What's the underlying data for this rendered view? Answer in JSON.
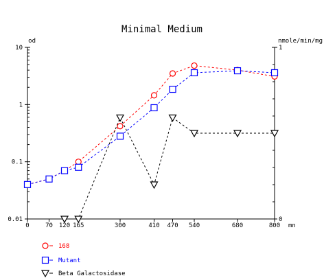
{
  "chart_data": {
    "type": "line",
    "title": "Minimal Medium",
    "x_unit": "mn",
    "x_ticks": [
      0,
      70,
      120,
      165,
      300,
      410,
      470,
      540,
      680,
      800
    ],
    "x_range": [
      0,
      800
    ],
    "y_left": {
      "label": "od",
      "scale": "log",
      "range": [
        0.01,
        10
      ],
      "ticks": [
        0.01,
        0.1,
        1,
        10
      ],
      "tick_labels": [
        "0.01",
        "0.1",
        "1",
        "10"
      ]
    },
    "y_right": {
      "label": "nmole/min/mg",
      "scale": "linear",
      "range": [
        0,
        1
      ],
      "ticks": [
        0,
        1
      ],
      "tick_labels": [
        "0",
        "1"
      ]
    },
    "grid": false,
    "legend_position": "bottom-left",
    "series": [
      {
        "name": "168",
        "axis": "left",
        "color": "#ff0000",
        "marker": "circle",
        "x": [
          0,
          70,
          120,
          165,
          300,
          410,
          470,
          540,
          680,
          800
        ],
        "y": [
          0.04,
          0.05,
          0.07,
          0.1,
          0.42,
          1.45,
          3.5,
          4.8,
          4.0,
          3.1
        ]
      },
      {
        "name": "Mutant",
        "axis": "left",
        "color": "#0000ff",
        "marker": "square",
        "x": [
          0,
          70,
          120,
          165,
          300,
          410,
          470,
          540,
          680,
          800
        ],
        "y": [
          0.04,
          0.05,
          0.07,
          0.08,
          0.28,
          0.88,
          1.85,
          3.6,
          3.9,
          3.6
        ]
      },
      {
        "name": "Beta Galactosidase",
        "axis": "right",
        "color": "#000000",
        "marker": "triangle-down",
        "x": [
          120,
          165,
          300,
          410,
          470,
          540,
          680,
          800
        ],
        "y": [
          0.0,
          0.0,
          0.59,
          0.2,
          0.59,
          0.5,
          0.5,
          0.5
        ]
      }
    ]
  }
}
